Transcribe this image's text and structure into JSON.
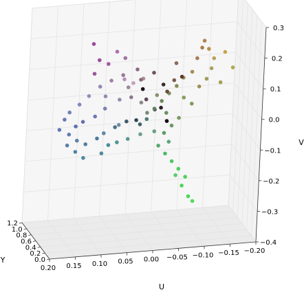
{
  "chart_data": {
    "type": "scatter",
    "projection": "3d",
    "title": "",
    "xlabel": "U",
    "ylabel": "Y",
    "zlabel": "V",
    "xlim": [
      -0.2,
      0.2
    ],
    "ylim": [
      0.0,
      1.2
    ],
    "zlim": [
      -0.4,
      0.3
    ],
    "xticks": [
      "0.20",
      "0.15",
      "0.10",
      "0.05",
      "0.00",
      "−0.05",
      "−0.10",
      "−0.15",
      "−0.20"
    ],
    "yticks": [
      "0.0",
      "0.2",
      "0.4",
      "0.6",
      "0.8",
      "1.0",
      "1.2"
    ],
    "zticks": [
      "0.3",
      "0.2",
      "0.1",
      "0.0",
      "−0.1",
      "−0.2",
      "−0.3",
      "−0.4"
    ],
    "grid": true,
    "note_colors": "point color is the RGB value of each pixel sample",
    "series": [
      {
        "points": [
          {
            "u": 0.095,
            "v": 0.18,
            "y": 0.55,
            "color": "#9a4f9a"
          },
          {
            "u": 0.11,
            "v": 0.24,
            "y": 0.5,
            "color": "#9b479c"
          },
          {
            "u": 0.075,
            "v": 0.16,
            "y": 0.6,
            "color": "#a25aa3"
          },
          {
            "u": 0.105,
            "v": 0.14,
            "y": 0.52,
            "color": "#955a98"
          },
          {
            "u": 0.06,
            "v": 0.2,
            "y": 0.58,
            "color": "#b06eb0"
          },
          {
            "u": 0.04,
            "v": 0.1,
            "y": 0.65,
            "color": "#b88fb6"
          },
          {
            "u": 0.02,
            "v": 0.08,
            "y": 0.7,
            "color": "#c49ec0"
          },
          {
            "u": 0.0,
            "v": 0.09,
            "y": 0.72,
            "color": "#a78f9a"
          },
          {
            "u": 0.01,
            "v": 0.06,
            "y": 0.35,
            "color": "#5f4a5a"
          },
          {
            "u": -0.005,
            "v": 0.03,
            "y": 0.3,
            "color": "#4a3a45"
          },
          {
            "u": -0.01,
            "v": 0.05,
            "y": 0.15,
            "color": "#2a1f27"
          },
          {
            "u": -0.015,
            "v": 0.12,
            "y": 0.2,
            "color": "#3a2a2a"
          },
          {
            "u": 0.03,
            "v": 0.05,
            "y": 0.55,
            "color": "#8d7a8c"
          },
          {
            "u": 0.05,
            "v": 0.04,
            "y": 0.6,
            "color": "#8f8ca8"
          },
          {
            "u": 0.08,
            "v": 0.02,
            "y": 0.55,
            "color": "#7b7fb2"
          },
          {
            "u": 0.1,
            "v": 0.0,
            "y": 0.52,
            "color": "#6e78b5"
          },
          {
            "u": 0.125,
            "v": -0.01,
            "y": 0.48,
            "color": "#6a6fb0"
          },
          {
            "u": 0.14,
            "v": -0.02,
            "y": 0.45,
            "color": "#5b70b0"
          },
          {
            "u": 0.15,
            "v": -0.05,
            "y": 0.5,
            "color": "#5f79b3"
          },
          {
            "u": 0.135,
            "v": -0.07,
            "y": 0.48,
            "color": "#5783ad"
          },
          {
            "u": 0.12,
            "v": -0.08,
            "y": 0.44,
            "color": "#4f7fa6"
          },
          {
            "u": 0.1,
            "v": -0.06,
            "y": 0.4,
            "color": "#4a7b9e"
          },
          {
            "u": 0.085,
            "v": -0.05,
            "y": 0.45,
            "color": "#5e86a4"
          },
          {
            "u": 0.065,
            "v": -0.03,
            "y": 0.42,
            "color": "#4e6f86"
          },
          {
            "u": 0.045,
            "v": -0.01,
            "y": 0.38,
            "color": "#3f5a6a"
          },
          {
            "u": 0.03,
            "v": 0.0,
            "y": 0.3,
            "color": "#2f4550"
          },
          {
            "u": 0.02,
            "v": -0.02,
            "y": 0.35,
            "color": "#3f6468"
          },
          {
            "u": 0.005,
            "v": -0.01,
            "y": 0.4,
            "color": "#4f7a70"
          },
          {
            "u": -0.01,
            "v": 0.02,
            "y": 0.42,
            "color": "#5f8060"
          },
          {
            "u": -0.025,
            "v": 0.04,
            "y": 0.45,
            "color": "#6f8a5a"
          },
          {
            "u": -0.04,
            "v": 0.06,
            "y": 0.48,
            "color": "#7f8f5a"
          },
          {
            "u": -0.055,
            "v": 0.08,
            "y": 0.5,
            "color": "#8a8a55"
          },
          {
            "u": -0.07,
            "v": 0.1,
            "y": 0.55,
            "color": "#9a8f5a"
          },
          {
            "u": -0.085,
            "v": 0.12,
            "y": 0.52,
            "color": "#a48c58"
          },
          {
            "u": -0.095,
            "v": 0.16,
            "y": 0.55,
            "color": "#a87c55"
          },
          {
            "u": -0.105,
            "v": 0.19,
            "y": 0.58,
            "color": "#b07a4a"
          },
          {
            "u": -0.11,
            "v": 0.21,
            "y": 0.6,
            "color": "#b0844f"
          },
          {
            "u": -0.12,
            "v": 0.18,
            "y": 0.62,
            "color": "#b5904f"
          },
          {
            "u": -0.13,
            "v": 0.15,
            "y": 0.6,
            "color": "#bba05a"
          },
          {
            "u": -0.125,
            "v": 0.12,
            "y": 0.58,
            "color": "#a8a260"
          },
          {
            "u": -0.115,
            "v": 0.09,
            "y": 0.55,
            "color": "#9d9d60"
          },
          {
            "u": -0.1,
            "v": 0.07,
            "y": 0.52,
            "color": "#a09055"
          },
          {
            "u": -0.15,
            "v": 0.17,
            "y": 0.58,
            "color": "#c4a648"
          },
          {
            "u": -0.165,
            "v": 0.12,
            "y": 0.55,
            "color": "#b2a850"
          },
          {
            "u": -0.14,
            "v": 0.08,
            "y": 0.5,
            "color": "#a2a058"
          },
          {
            "u": -0.06,
            "v": -0.02,
            "y": 0.45,
            "color": "#7a9a5f"
          },
          {
            "u": -0.045,
            "v": -0.04,
            "y": 0.42,
            "color": "#6a9a60"
          },
          {
            "u": -0.03,
            "v": -0.06,
            "y": 0.4,
            "color": "#5f9a6a"
          },
          {
            "u": -0.01,
            "v": -0.05,
            "y": 0.38,
            "color": "#6a9f85"
          },
          {
            "u": 0.015,
            "v": -0.06,
            "y": 0.42,
            "color": "#6b9f90"
          },
          {
            "u": 0.04,
            "v": -0.07,
            "y": 0.4,
            "color": "#5b9a92"
          },
          {
            "u": 0.06,
            "v": -0.08,
            "y": 0.42,
            "color": "#529492"
          },
          {
            "u": 0.075,
            "v": -0.09,
            "y": 0.45,
            "color": "#4d8e9a"
          },
          {
            "u": -0.02,
            "v": -0.1,
            "y": 0.4,
            "color": "#55aa70"
          },
          {
            "u": -0.035,
            "v": -0.13,
            "y": 0.42,
            "color": "#4dbb6a"
          },
          {
            "u": -0.05,
            "v": -0.16,
            "y": 0.45,
            "color": "#4fc866"
          },
          {
            "u": -0.065,
            "v": -0.19,
            "y": 0.48,
            "color": "#52d060"
          },
          {
            "u": -0.08,
            "v": -0.22,
            "y": 0.5,
            "color": "#4fd25a"
          },
          {
            "u": -0.075,
            "v": -0.25,
            "y": 0.52,
            "color": "#50d45c"
          },
          {
            "u": -0.09,
            "v": -0.29,
            "y": 0.55,
            "color": "#4ed85a"
          },
          {
            "u": -0.1,
            "v": -0.31,
            "y": 0.58,
            "color": "#52dc5e"
          },
          {
            "u": -0.06,
            "v": -0.21,
            "y": 0.48,
            "color": "#5acc70"
          },
          {
            "u": 0.02,
            "v": 0.1,
            "y": 0.3,
            "color": "#1a1014"
          },
          {
            "u": -0.02,
            "v": 0.01,
            "y": 0.1,
            "color": "#0f0f0f"
          },
          {
            "u": -0.03,
            "v": 0.08,
            "y": 0.35,
            "color": "#6a4a40"
          },
          {
            "u": -0.045,
            "v": 0.11,
            "y": 0.4,
            "color": "#7a5a4a"
          },
          {
            "u": -0.055,
            "v": 0.13,
            "y": 0.3,
            "color": "#5a3a32"
          },
          {
            "u": -0.005,
            "v": 0.14,
            "y": 0.4,
            "color": "#705060"
          },
          {
            "u": 0.025,
            "v": 0.15,
            "y": 0.45,
            "color": "#8a6a85"
          },
          {
            "u": 0.05,
            "v": 0.13,
            "y": 0.5,
            "color": "#9a7a9a"
          },
          {
            "u": 0.07,
            "v": 0.11,
            "y": 0.55,
            "color": "#a080a4"
          },
          {
            "u": 0.09,
            "v": 0.09,
            "y": 0.58,
            "color": "#9888b4"
          },
          {
            "u": 0.11,
            "v": 0.06,
            "y": 0.6,
            "color": "#8f8fbd"
          },
          {
            "u": 0.13,
            "v": 0.04,
            "y": 0.55,
            "color": "#8088bd"
          },
          {
            "u": 0.15,
            "v": 0.02,
            "y": 0.52,
            "color": "#7380b8"
          },
          {
            "u": 0.16,
            "v": 0.0,
            "y": 0.5,
            "color": "#6a7ab5"
          },
          {
            "u": 0.17,
            "v": -0.03,
            "y": 0.48,
            "color": "#6278b0"
          },
          {
            "u": 0.155,
            "v": -0.08,
            "y": 0.45,
            "color": "#5a80aa"
          },
          {
            "u": 0.14,
            "v": -0.1,
            "y": 0.42,
            "color": "#4f84a5"
          },
          {
            "u": 0.125,
            "v": -0.12,
            "y": 0.4,
            "color": "#4a88a2"
          },
          {
            "u": 0.09,
            "v": -0.11,
            "y": 0.4,
            "color": "#4f8a9b"
          },
          {
            "u": 0.0,
            "v": 0.0,
            "y": 0.5,
            "color": "#7a8a7a"
          },
          {
            "u": 0.01,
            "v": 0.03,
            "y": 0.55,
            "color": "#8a8a8a"
          },
          {
            "u": -0.02,
            "v": 0.05,
            "y": 0.55,
            "color": "#8a9070"
          },
          {
            "u": 0.035,
            "v": 0.08,
            "y": 0.58,
            "color": "#9b8a9a"
          },
          {
            "u": -0.035,
            "v": 0.0,
            "y": 0.45,
            "color": "#6c8f64"
          },
          {
            "u": 0.055,
            "v": -0.03,
            "y": 0.48,
            "color": "#6f8aa0"
          },
          {
            "u": 0.015,
            "v": 0.11,
            "y": 0.5,
            "color": "#8a6a7a"
          },
          {
            "u": -0.07,
            "v": 0.04,
            "y": 0.5,
            "color": "#8a9a62"
          },
          {
            "u": -0.085,
            "v": 0.02,
            "y": 0.48,
            "color": "#7f9a5e"
          },
          {
            "u": -0.05,
            "v": 0.16,
            "y": 0.45,
            "color": "#8a6a5a"
          },
          {
            "u": 0.045,
            "v": 0.18,
            "y": 0.55,
            "color": "#a070a0"
          },
          {
            "u": 0.08,
            "v": 0.06,
            "y": 0.55,
            "color": "#9a88b0"
          },
          {
            "u": -0.04,
            "v": -0.09,
            "y": 0.4,
            "color": "#5aa878"
          }
        ]
      }
    ]
  }
}
